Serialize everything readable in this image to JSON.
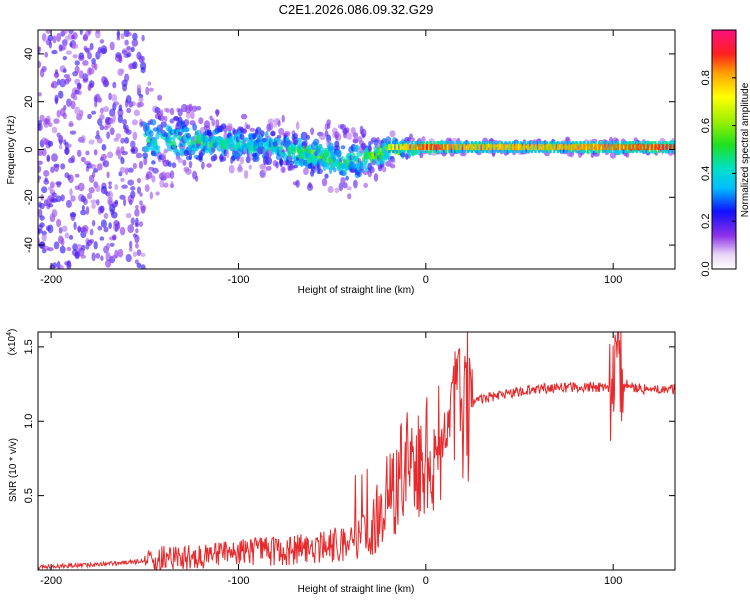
{
  "title": "C2E1.2026.086.09.32.G29",
  "colors": {
    "snr_line": "#e8282a",
    "frame": "#000000"
  },
  "chart_data": [
    {
      "type": "heatmap",
      "title": "C2E1.2026.086.09.32.G29",
      "xlabel": "Height of straight line (km)",
      "ylabel": "Frequency (Hz)",
      "xlim": [
        -207,
        133
      ],
      "ylim": [
        -50,
        50
      ],
      "xticks": [
        -200,
        -100,
        0,
        100
      ],
      "xtick_labels": [
        "-200",
        "-100",
        "0",
        "100"
      ],
      "yticks": [
        -40,
        -20,
        0,
        20,
        40
      ],
      "ytick_labels": [
        "-40",
        "-20",
        "0",
        "20",
        "40"
      ],
      "colorbar": {
        "label": "Normalized spectral amplitude",
        "range": [
          0,
          1
        ],
        "ticks": [
          0.0,
          0.2,
          0.4,
          0.6,
          0.8
        ],
        "tick_labels": [
          "0.0",
          "0.2",
          "0.4",
          "0.6",
          "0.8"
        ]
      },
      "description_points": {
        "height_km": [
          -200,
          -170,
          -150,
          -120,
          -100,
          -80,
          -60,
          -40,
          -20,
          0,
          20,
          60,
          100,
          130
        ],
        "center_freq_hz": [
          8,
          6,
          4,
          3,
          2,
          1,
          -2,
          -6,
          0,
          1,
          1,
          1,
          1,
          1
        ],
        "spread_hz": [
          48,
          45,
          20,
          12,
          10,
          10,
          12,
          12,
          6,
          3,
          2,
          2,
          3,
          2
        ],
        "peak_amplitude": [
          0.3,
          0.35,
          0.45,
          0.5,
          0.5,
          0.5,
          0.55,
          0.5,
          0.7,
          0.9,
          0.8,
          0.8,
          0.85,
          0.9
        ]
      }
    },
    {
      "type": "line",
      "xlabel": "Height of straight line (km)",
      "ylabel": "SNR (10 * v/v)",
      "y_scale_label": "(x10",
      "y_scale_exponent": "4",
      "y_scale_suffix": ")",
      "xlim": [
        -207,
        133
      ],
      "ylim": [
        0.0,
        1.6
      ],
      "xticks": [
        -200,
        -100,
        0,
        100
      ],
      "xtick_labels": [
        "-200",
        "-100",
        "0",
        "100"
      ],
      "yticks": [
        0.5,
        1.0,
        1.5
      ],
      "ytick_labels": [
        "0.5",
        "1.0",
        "1.5"
      ],
      "series": [
        {
          "name": "SNR",
          "x": [
            -207,
            -190,
            -170,
            -160,
            -150,
            -140,
            -120,
            -100,
            -80,
            -60,
            -40,
            -30,
            -25,
            -20,
            -15,
            -10,
            -5,
            0,
            5,
            10,
            15,
            20,
            30,
            40,
            60,
            80,
            95,
            100,
            102,
            104,
            108,
            115,
            125,
            133
          ],
          "y": [
            0.02,
            0.03,
            0.04,
            0.05,
            0.06,
            0.08,
            0.09,
            0.11,
            0.13,
            0.15,
            0.18,
            0.25,
            0.35,
            0.5,
            0.55,
            0.65,
            0.68,
            0.72,
            0.8,
            0.88,
            0.98,
            1.08,
            1.15,
            1.18,
            1.22,
            1.23,
            1.23,
            1.2,
            1.45,
            1.3,
            1.24,
            1.22,
            1.21,
            1.22
          ]
        }
      ]
    }
  ]
}
